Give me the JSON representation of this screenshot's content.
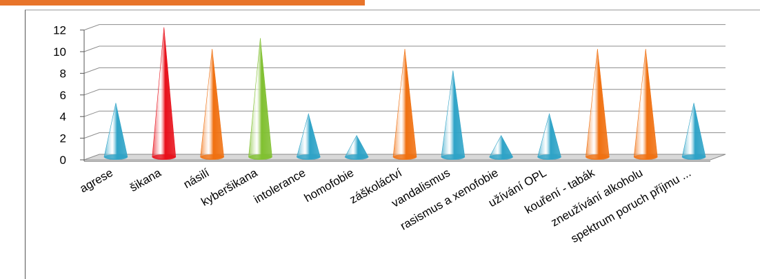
{
  "chart_data": {
    "type": "bar",
    "subtype": "3d-cone",
    "title": "",
    "xlabel": "",
    "ylabel": "",
    "ylim": [
      0,
      12
    ],
    "yticks": [
      0,
      2,
      4,
      6,
      8,
      10,
      12
    ],
    "grid": true,
    "categories": [
      "agrese",
      "šikana",
      "násilí",
      "kyberšikana",
      "intolerance",
      "homofobie",
      "záškoláctví",
      "vandalismus",
      "rasismus a xenofobie",
      "užívání OPL",
      "kouření - tabák",
      "zneužívání alkoholu",
      "spektrum poruch příjmu ..."
    ],
    "values": [
      5,
      12,
      10,
      11,
      4,
      2,
      10,
      8,
      2,
      4,
      10,
      10,
      5
    ],
    "colors": [
      "#2ea3c7",
      "#e8101a",
      "#f07010",
      "#80c030",
      "#2ea3c7",
      "#2ea3c7",
      "#f07010",
      "#2ea3c7",
      "#2ea3c7",
      "#2ea3c7",
      "#f07010",
      "#f07010",
      "#2ea3c7"
    ]
  },
  "decor": {
    "top_accent": "#e8742a",
    "frame": "#444444"
  }
}
